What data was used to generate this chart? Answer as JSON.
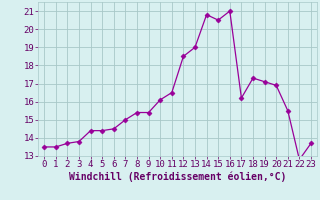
{
  "x": [
    0,
    1,
    2,
    3,
    4,
    5,
    6,
    7,
    8,
    9,
    10,
    11,
    12,
    13,
    14,
    15,
    16,
    17,
    18,
    19,
    20,
    21,
    22,
    23
  ],
  "y": [
    13.5,
    13.5,
    13.7,
    13.8,
    14.4,
    14.4,
    14.5,
    15.0,
    15.4,
    15.4,
    16.1,
    16.5,
    18.5,
    19.0,
    20.8,
    20.5,
    21.0,
    16.2,
    17.3,
    17.1,
    16.9,
    15.5,
    12.8,
    13.7
  ],
  "line_color": "#990099",
  "marker": "D",
  "marker_size": 2.5,
  "bg_color": "#d8f0f0",
  "grid_color": "#a8c8c8",
  "xlabel": "Windchill (Refroidissement éolien,°C)",
  "ylabel": "",
  "xlim": [
    -0.5,
    23.5
  ],
  "ylim": [
    13.0,
    21.5
  ],
  "xticks": [
    0,
    1,
    2,
    3,
    4,
    5,
    6,
    7,
    8,
    9,
    10,
    11,
    12,
    13,
    14,
    15,
    16,
    17,
    18,
    19,
    20,
    21,
    22,
    23
  ],
  "yticks": [
    13,
    14,
    15,
    16,
    17,
    18,
    19,
    20,
    21
  ],
  "xlabel_fontsize": 7.0,
  "tick_fontsize": 6.5,
  "label_color": "#660066"
}
